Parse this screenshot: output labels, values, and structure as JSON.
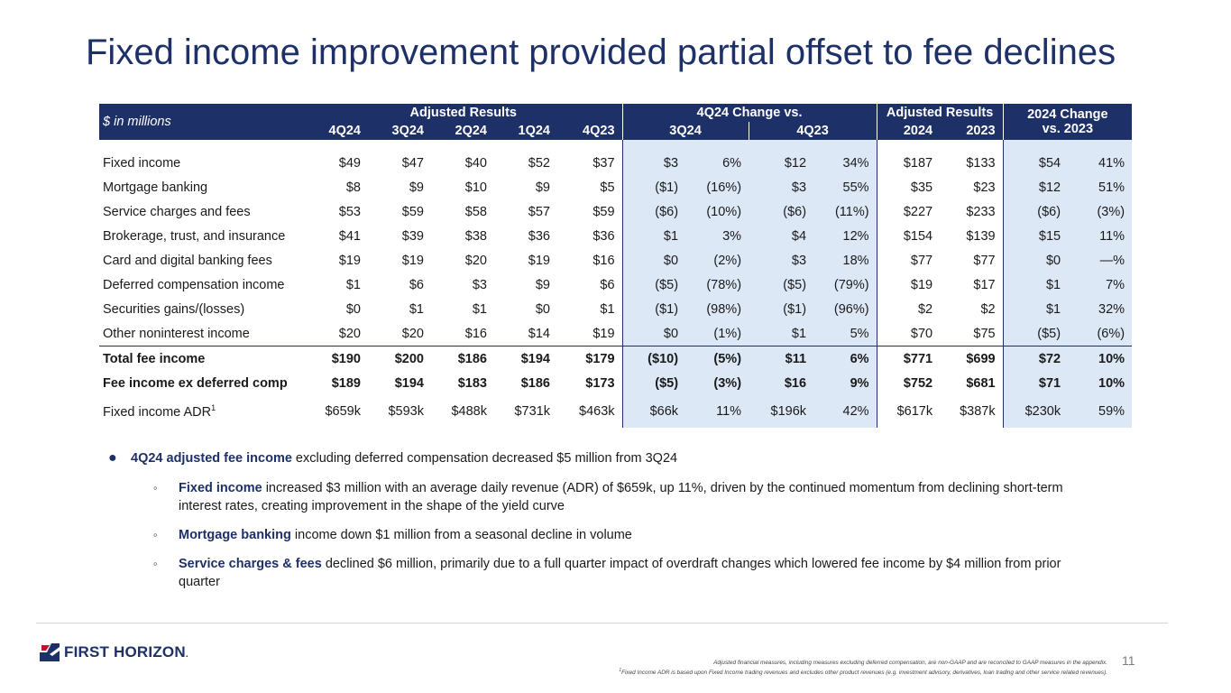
{
  "title": "Fixed income improvement provided partial offset to fee declines",
  "table": {
    "stub_header": "$ in millions",
    "groups": {
      "adjusted_results": "Adjusted Results",
      "change_vs": "4Q24 Change vs.",
      "adjusted_results_year": "Adjusted Results",
      "change_2024_line1": "2024 Change",
      "change_2024_line2": "vs. 2023"
    },
    "quarters": [
      "4Q24",
      "3Q24",
      "2Q24",
      "1Q24",
      "4Q23"
    ],
    "change_cols": [
      "3Q24",
      "4Q23"
    ],
    "years": [
      "2024",
      "2023"
    ],
    "rows": [
      {
        "label": "Fixed income",
        "q": [
          "$49",
          "$47",
          "$40",
          "$52",
          "$37"
        ],
        "c1": [
          "$3",
          "6%"
        ],
        "c2": [
          "$12",
          "34%"
        ],
        "y": [
          "$187",
          "$133"
        ],
        "c3": [
          "$54",
          "41%"
        ]
      },
      {
        "label": "Mortgage banking",
        "q": [
          "$8",
          "$9",
          "$10",
          "$9",
          "$5"
        ],
        "c1": [
          "($1)",
          "(16%)"
        ],
        "c2": [
          "$3",
          "55%"
        ],
        "y": [
          "$35",
          "$23"
        ],
        "c3": [
          "$12",
          "51%"
        ]
      },
      {
        "label": "Service charges and fees",
        "q": [
          "$53",
          "$59",
          "$58",
          "$57",
          "$59"
        ],
        "c1": [
          "($6)",
          "(10%)"
        ],
        "c2": [
          "($6)",
          "(11%)"
        ],
        "y": [
          "$227",
          "$233"
        ],
        "c3": [
          "($6)",
          "(3%)"
        ]
      },
      {
        "label": "Brokerage, trust, and insurance",
        "q": [
          "$41",
          "$39",
          "$38",
          "$36",
          "$36"
        ],
        "c1": [
          "$1",
          "3%"
        ],
        "c2": [
          "$4",
          "12%"
        ],
        "y": [
          "$154",
          "$139"
        ],
        "c3": [
          "$15",
          "11%"
        ]
      },
      {
        "label": "Card and digital banking fees",
        "q": [
          "$19",
          "$19",
          "$20",
          "$19",
          "$16"
        ],
        "c1": [
          "$0",
          "(2%)"
        ],
        "c2": [
          "$3",
          "18%"
        ],
        "y": [
          "$77",
          "$77"
        ],
        "c3": [
          "$0",
          "—%"
        ]
      },
      {
        "label": "Deferred compensation income",
        "q": [
          "$1",
          "$6",
          "$3",
          "$9",
          "$6"
        ],
        "c1": [
          "($5)",
          "(78%)"
        ],
        "c2": [
          "($5)",
          "(79%)"
        ],
        "y": [
          "$19",
          "$17"
        ],
        "c3": [
          "$1",
          "7%"
        ]
      },
      {
        "label": "Securities gains/(losses)",
        "q": [
          "$0",
          "$1",
          "$1",
          "$0",
          "$1"
        ],
        "c1": [
          "($1)",
          "(98%)"
        ],
        "c2": [
          "($1)",
          "(96%)"
        ],
        "y": [
          "$2",
          "$2"
        ],
        "c3": [
          "$1",
          "32%"
        ]
      },
      {
        "label": "Other noninterest income",
        "q": [
          "$20",
          "$20",
          "$16",
          "$14",
          "$19"
        ],
        "c1": [
          "$0",
          "(1%)"
        ],
        "c2": [
          "$1",
          "5%"
        ],
        "y": [
          "$70",
          "$75"
        ],
        "c3": [
          "($5)",
          "(6%)"
        ]
      },
      {
        "label": "Total fee income",
        "q": [
          "$190",
          "$200",
          "$186",
          "$194",
          "$179"
        ],
        "c1": [
          "($10)",
          "(5%)"
        ],
        "c2": [
          "$11",
          "6%"
        ],
        "y": [
          "$771",
          "$699"
        ],
        "c3": [
          "$72",
          "10%"
        ]
      },
      {
        "label": "Fee income ex deferred comp",
        "q": [
          "$189",
          "$194",
          "$183",
          "$186",
          "$173"
        ],
        "c1": [
          "($5)",
          "(3%)"
        ],
        "c2": [
          "$16",
          "9%"
        ],
        "y": [
          "$752",
          "$681"
        ],
        "c3": [
          "$71",
          "10%"
        ]
      },
      {
        "label": "Fixed income ADR",
        "label_sup": "1",
        "q": [
          "$659k",
          "$593k",
          "$488k",
          "$731k",
          "$463k"
        ],
        "c1": [
          "$66k",
          "11%"
        ],
        "c2": [
          "$196k",
          "42%"
        ],
        "y": [
          "$617k",
          "$387k"
        ],
        "c3": [
          "$230k",
          "59%"
        ]
      }
    ]
  },
  "bullets": {
    "main_bold": "4Q24 adjusted fee income",
    "main_rest": " excluding deferred compensation decreased $5 million from 3Q24",
    "subs": [
      {
        "bold": "Fixed income",
        "rest": " increased $3 million with an average daily revenue (ADR) of $659k, up 11%, driven by the continued momentum from declining short-term interest rates, creating improvement in the shape of the yield curve"
      },
      {
        "bold": "Mortgage banking",
        "rest": " income down $1 million from a seasonal decline in volume"
      },
      {
        "bold": "Service charges & fees",
        "rest": " declined $6 million, primarily due to a full quarter impact of overdraft changes which lowered fee income by $4 million from prior quarter"
      }
    ]
  },
  "footer": {
    "logo_text": "FIRST HORIZON",
    "logo_mark": ".",
    "note1": "Adjusted financial measures, including measures excluding deferred compensation, are non-GAAP and are reconciled to GAAP measures in the appendix.",
    "note2_sup": "1",
    "note2": "Fixed Income ADR is based upon Fixed Income trading revenues and excludes other product revenues (e.g. investment advisory, derivatives, loan trading and other service related revenues).",
    "page_number": "11"
  },
  "colors": {
    "navy": "#1d3068",
    "shade": "#dde8f7",
    "accent_red": "#c8102e"
  }
}
